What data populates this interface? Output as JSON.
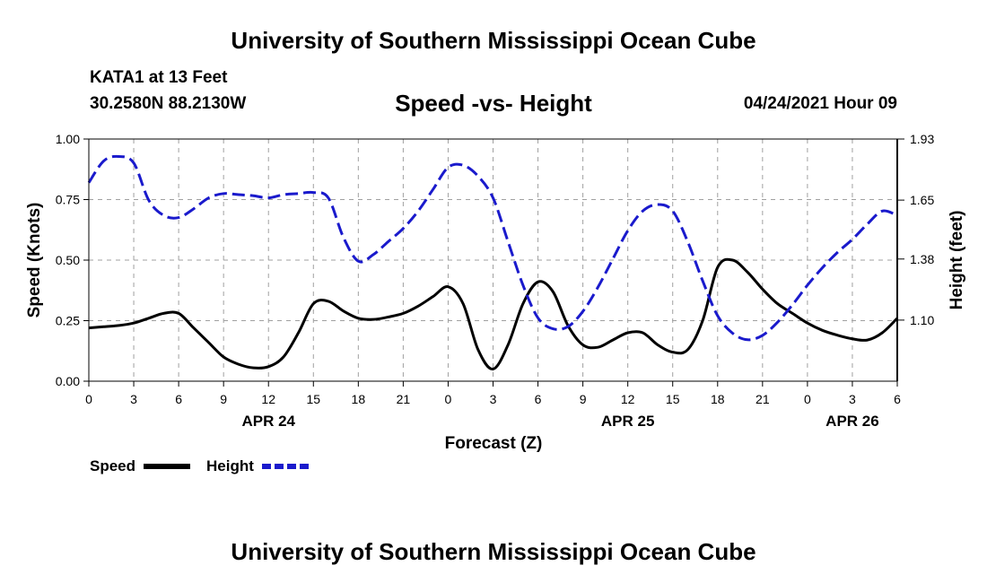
{
  "header": {
    "title": "University of Southern Mississippi Ocean Cube",
    "station": "KATA1 at 13 Feet",
    "coords": "30.2580N  88.2130W",
    "chart_title": "Speed -vs- Height",
    "datetime": "04/24/2021 Hour 09"
  },
  "footer": {
    "title": "University of Southern Mississippi Ocean Cube"
  },
  "colors": {
    "speed": "#000000",
    "height": "#1a1acc",
    "grid": "#a0a0a0"
  },
  "chart_data": {
    "type": "line",
    "title": "Speed -vs- Height",
    "xlabel": "Forecast (Z)",
    "ylabel": "Speed (Knots)",
    "y2label": "Height (feet)",
    "xlim": [
      0,
      54
    ],
    "ylim": [
      0,
      1
    ],
    "y2lim": [
      0.82,
      1.93
    ],
    "x_tick_values": [
      0,
      3,
      6,
      9,
      12,
      15,
      18,
      21,
      24,
      27,
      30,
      33,
      36,
      39,
      42,
      45,
      48,
      51,
      54
    ],
    "x_tick_labels": [
      "0",
      "3",
      "6",
      "9",
      "12",
      "15",
      "18",
      "21",
      "0",
      "3",
      "6",
      "9",
      "12",
      "15",
      "18",
      "21",
      "0",
      "3",
      "6"
    ],
    "day_labels": [
      {
        "x": 12,
        "label": "APR 24"
      },
      {
        "x": 36,
        "label": "APR 25"
      },
      {
        "x": 51,
        "label": "APR 26"
      }
    ],
    "y_ticks": [
      {
        "value": 0,
        "label": "0.00"
      },
      {
        "value": 0.25,
        "label": "0.25"
      },
      {
        "value": 0.5,
        "label": "0.50"
      },
      {
        "value": 0.75,
        "label": "0.75"
      },
      {
        "value": 1,
        "label": "1.00"
      }
    ],
    "y2_ticks": [
      {
        "value": 1.1,
        "label": "1.10"
      },
      {
        "value": 1.38,
        "label": "1.38"
      },
      {
        "value": 1.65,
        "label": "1.65"
      },
      {
        "value": 1.93,
        "label": "1.93"
      }
    ],
    "grid": true,
    "legend_position": "bottom-left",
    "series": [
      {
        "name": "Speed",
        "axis": "left",
        "style": "solid",
        "x": [
          0,
          1,
          2,
          3,
          4,
          5,
          6,
          7,
          8,
          9,
          10,
          11,
          12,
          13,
          14,
          15,
          16,
          17,
          18,
          19,
          20,
          21,
          22,
          23,
          24,
          25,
          26,
          27,
          28,
          29,
          30,
          31,
          32,
          33,
          34,
          35,
          36,
          37,
          38,
          39,
          40,
          41,
          42,
          43,
          44,
          45,
          46,
          47,
          48,
          49,
          50,
          51,
          52,
          53,
          54
        ],
        "values": [
          0.22,
          0.225,
          0.23,
          0.24,
          0.26,
          0.28,
          0.28,
          0.22,
          0.16,
          0.1,
          0.07,
          0.055,
          0.06,
          0.1,
          0.2,
          0.32,
          0.33,
          0.29,
          0.26,
          0.255,
          0.265,
          0.28,
          0.31,
          0.35,
          0.39,
          0.32,
          0.13,
          0.05,
          0.15,
          0.32,
          0.41,
          0.37,
          0.23,
          0.15,
          0.14,
          0.17,
          0.2,
          0.2,
          0.15,
          0.12,
          0.13,
          0.25,
          0.47,
          0.5,
          0.45,
          0.38,
          0.32,
          0.28,
          0.24,
          0.21,
          0.19,
          0.175,
          0.17,
          0.2,
          0.26
        ]
      },
      {
        "name": "Height",
        "axis": "right",
        "style": "dashed",
        "x": [
          0,
          1,
          2,
          3,
          4,
          5,
          6,
          7,
          8,
          9,
          10,
          11,
          12,
          13,
          14,
          15,
          16,
          17,
          18,
          19,
          20,
          21,
          22,
          23,
          24,
          25,
          26,
          27,
          28,
          29,
          30,
          31,
          32,
          33,
          34,
          35,
          36,
          37,
          38,
          39,
          40,
          41,
          42,
          43,
          44,
          45,
          46,
          47,
          48,
          49,
          50,
          51,
          52,
          53,
          54
        ],
        "values": [
          1.73,
          1.83,
          1.85,
          1.82,
          1.65,
          1.58,
          1.57,
          1.61,
          1.66,
          1.68,
          1.675,
          1.67,
          1.66,
          1.675,
          1.68,
          1.685,
          1.66,
          1.48,
          1.37,
          1.4,
          1.46,
          1.52,
          1.6,
          1.7,
          1.8,
          1.81,
          1.76,
          1.66,
          1.46,
          1.26,
          1.11,
          1.06,
          1.07,
          1.14,
          1.25,
          1.38,
          1.51,
          1.6,
          1.63,
          1.6,
          1.46,
          1.28,
          1.12,
          1.04,
          1.01,
          1.03,
          1.09,
          1.17,
          1.26,
          1.34,
          1.41,
          1.47,
          1.54,
          1.6,
          1.58
        ]
      }
    ]
  }
}
